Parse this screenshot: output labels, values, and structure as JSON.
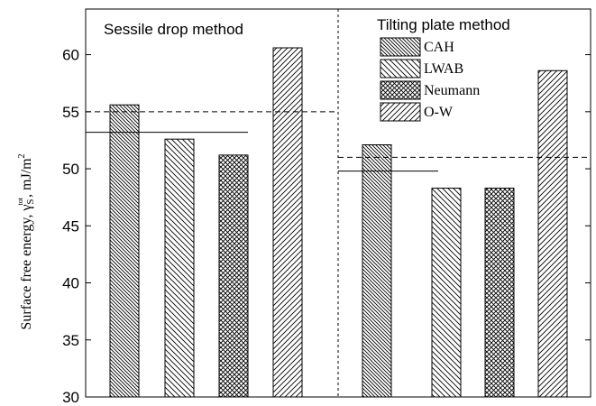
{
  "chart_data": {
    "type": "bar",
    "groups": [
      {
        "title": "Sessile drop method",
        "values": [
          55.6,
          52.6,
          51.2,
          60.6
        ],
        "mean_line": 53.2,
        "dashed_line": 55.0
      },
      {
        "title": "Tilting plate method",
        "values": [
          52.1,
          48.3,
          48.3,
          58.6
        ],
        "mean_line": 49.8,
        "dashed_line": 51.0
      }
    ],
    "series": [
      {
        "name": "CAH",
        "pattern": "diag-down-dense"
      },
      {
        "name": "LWAB",
        "pattern": "diag-down"
      },
      {
        "name": "Neumann",
        "pattern": "crosshatch"
      },
      {
        "name": "O-W",
        "pattern": "diag-up"
      }
    ],
    "ylabel": {
      "text": "Surface free energy, γ",
      "sub": "S",
      "sup": "tot",
      "unit": ", mJ/m",
      "unit_sup": "2"
    },
    "ylim": [
      30,
      64
    ],
    "yticks": [
      "30",
      "35",
      "40",
      "45",
      "50",
      "55",
      "60"
    ],
    "legend_position": "top of right panel",
    "colors": {
      "stroke": "#000000",
      "background": "#ffffff"
    }
  }
}
